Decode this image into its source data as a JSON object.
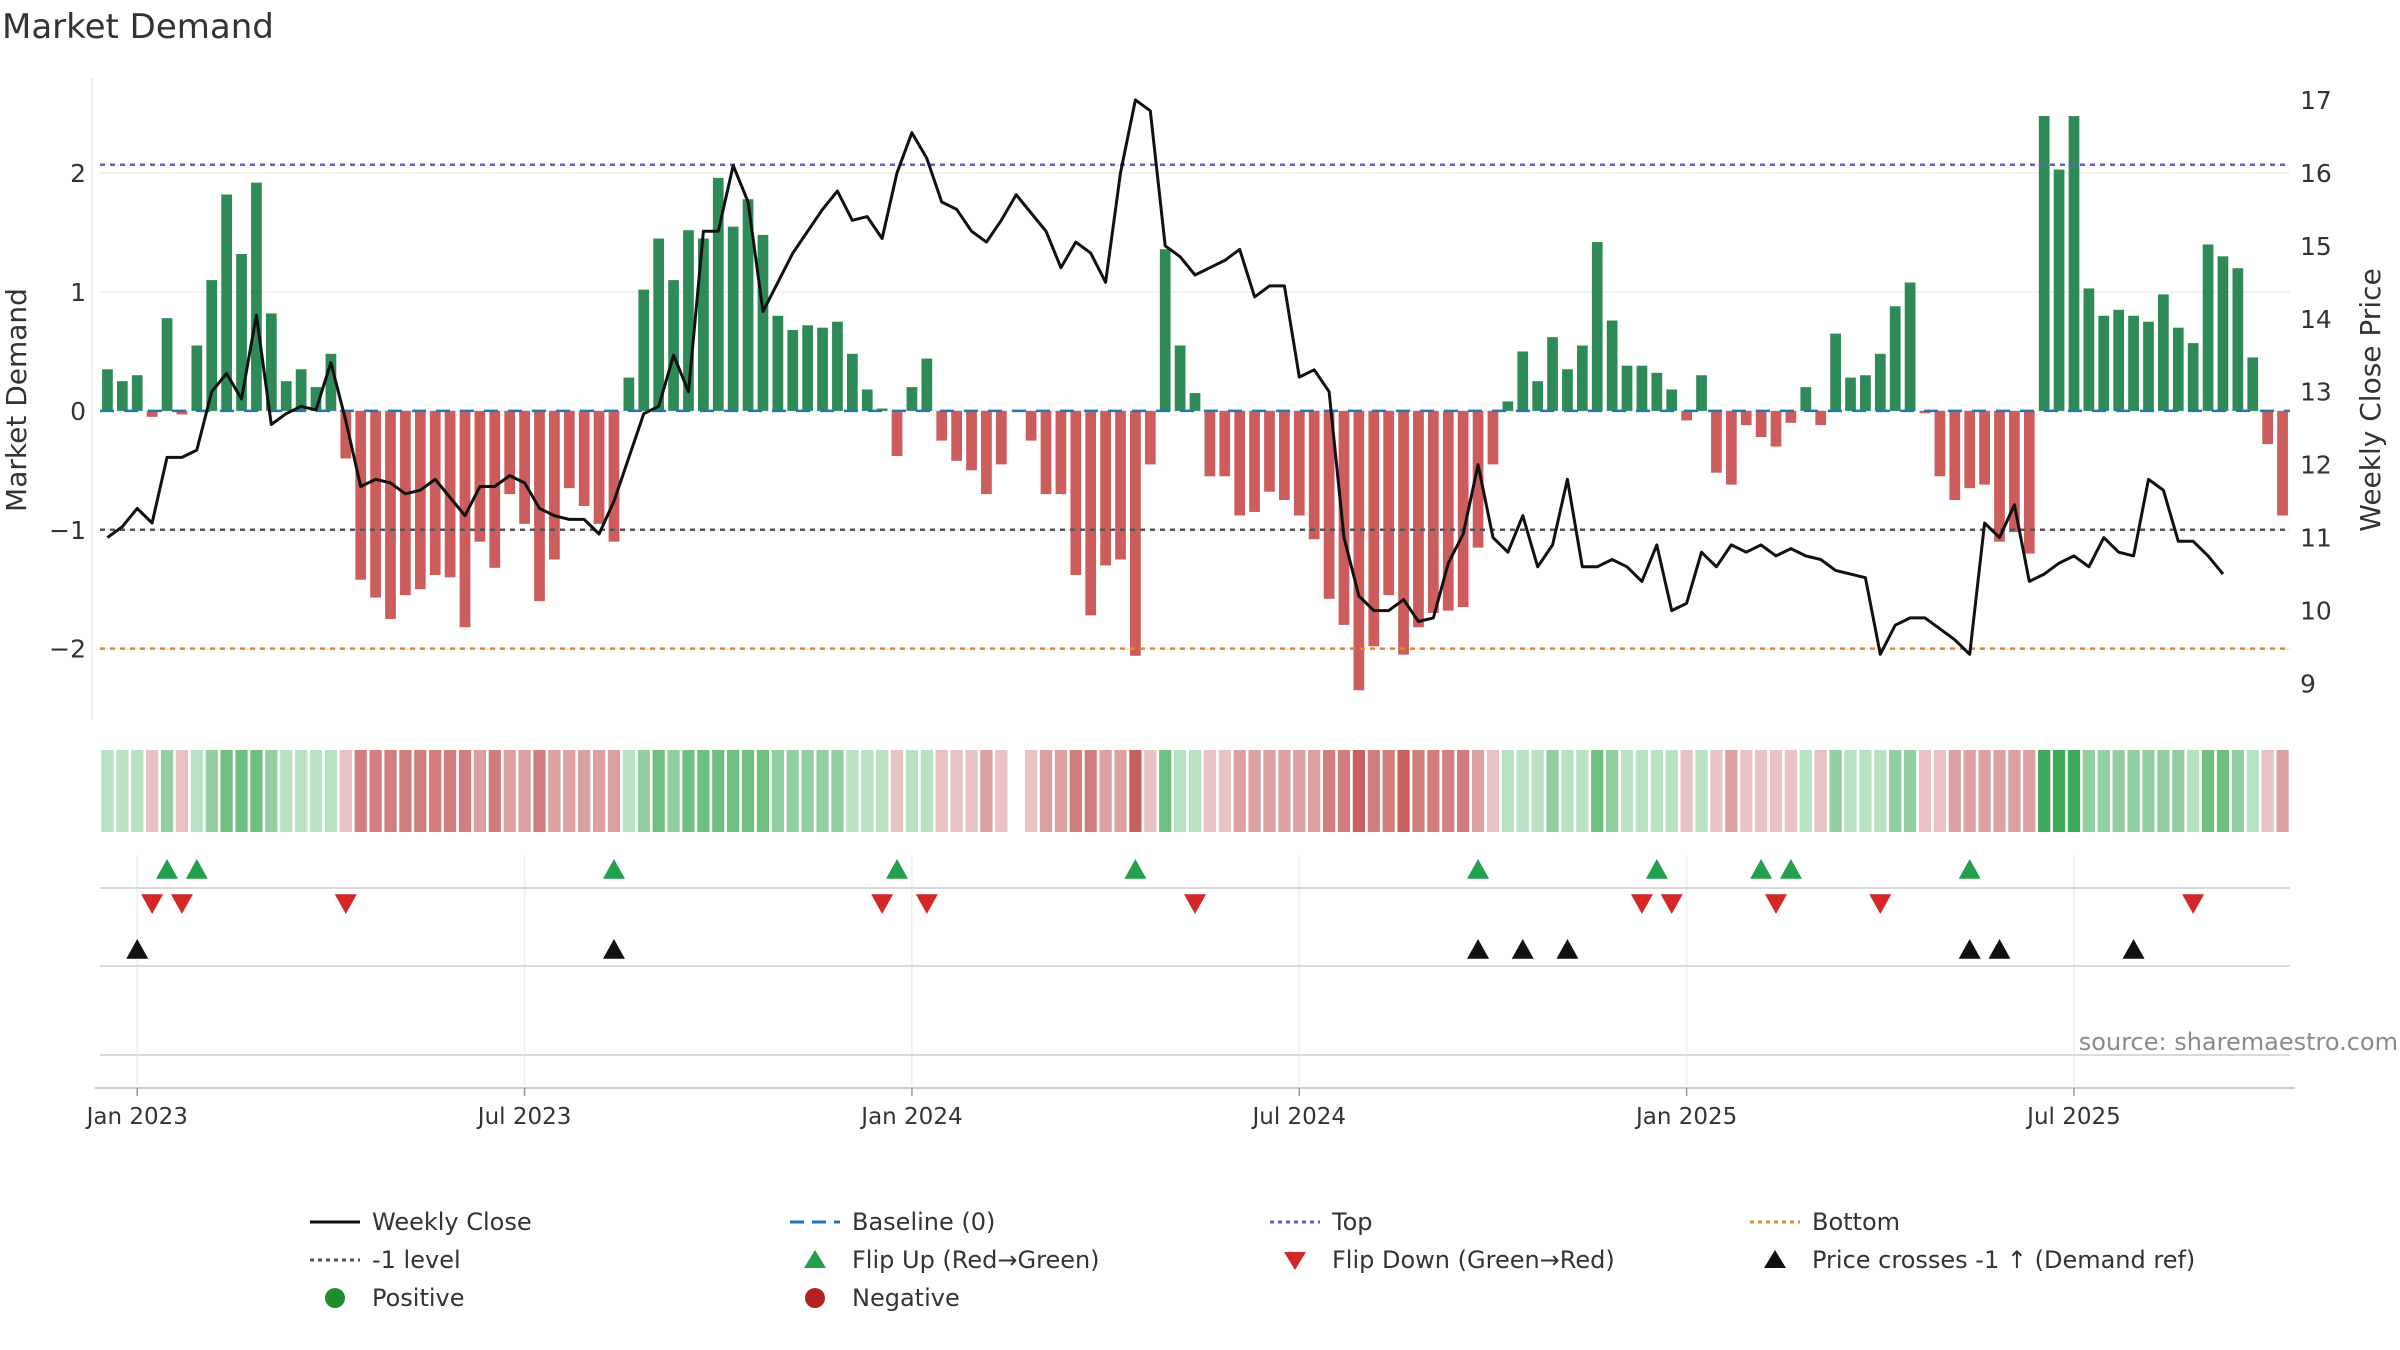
{
  "chart_data": {
    "type": "bar",
    "title": "Market Demand",
    "ylabel_left": "Market Demand",
    "ylabel_right": "Weekly Close Price",
    "source": "source: sharemaestro.com",
    "left_ylim": [
      -2.6,
      2.8
    ],
    "right_ylim": [
      8.5,
      17.3
    ],
    "left_ticks": [
      2,
      1,
      0,
      -1,
      -2
    ],
    "left_tick_labels": [
      "2",
      "1",
      "0",
      "−1",
      "−2"
    ],
    "right_ticks": [
      17,
      16,
      15,
      14,
      13,
      12,
      11,
      10,
      9
    ],
    "right_tick_labels": [
      "17",
      "16",
      "15",
      "14",
      "13",
      "12",
      "11",
      "10",
      "9"
    ],
    "x_ticks": [
      {
        "week": 2,
        "label": "Jan 2023"
      },
      {
        "week": 28,
        "label": "Jul 2023"
      },
      {
        "week": 54,
        "label": "Jan 2024"
      },
      {
        "week": 80,
        "label": "Jul 2024"
      },
      {
        "week": 106,
        "label": "Jan 2025"
      },
      {
        "week": 132,
        "label": "Jul 2025"
      }
    ],
    "reference_lines": {
      "top": 2.07,
      "bottom": -2.0,
      "minus_one": -1.0,
      "baseline": 0
    },
    "demand": [
      0.35,
      0.25,
      0.3,
      -0.05,
      0.78,
      -0.03,
      0.55,
      1.1,
      1.82,
      1.32,
      1.92,
      0.82,
      0.25,
      0.35,
      0.2,
      0.48,
      -0.4,
      -1.42,
      -1.57,
      -1.75,
      -1.55,
      -1.5,
      -1.38,
      -1.4,
      -1.82,
      -1.1,
      -1.32,
      -0.7,
      -0.95,
      -1.6,
      -1.25,
      -0.65,
      -0.8,
      -0.95,
      -1.1,
      0.28,
      1.02,
      1.45,
      1.1,
      1.52,
      1.45,
      1.96,
      1.55,
      1.78,
      1.48,
      0.8,
      0.68,
      0.72,
      0.7,
      0.75,
      0.48,
      0.18,
      0.02,
      -0.38,
      0.2,
      0.44,
      -0.25,
      -0.42,
      -0.5,
      -0.7,
      -0.45,
      null,
      -0.25,
      -0.7,
      -0.7,
      -1.38,
      -1.72,
      -1.3,
      -1.25,
      -2.06,
      -0.45,
      1.36,
      0.55,
      0.15,
      -0.55,
      -0.55,
      -0.88,
      -0.85,
      -0.68,
      -0.75,
      -0.88,
      -1.08,
      -1.58,
      -1.8,
      -2.35,
      -1.98,
      -1.55,
      -2.05,
      -1.82,
      -1.7,
      -1.68,
      -1.65,
      -1.15,
      -0.45,
      0.08,
      0.5,
      0.25,
      0.62,
      0.35,
      0.55,
      1.42,
      0.76,
      0.38,
      0.38,
      0.32,
      0.18,
      -0.08,
      0.3,
      -0.52,
      -0.62,
      -0.12,
      -0.22,
      -0.3,
      -0.1,
      0.2,
      -0.12,
      0.65,
      0.28,
      0.3,
      0.48,
      0.88,
      1.08,
      -0.02,
      -0.55,
      -0.75,
      -0.65,
      -0.62,
      -1.1,
      -1.02,
      -1.2,
      2.48,
      2.03,
      2.48,
      1.03,
      0.8,
      0.85,
      0.8,
      0.75,
      0.98,
      0.7,
      0.57,
      1.4,
      1.3,
      1.2,
      0.45,
      -0.28,
      -0.88
    ],
    "flip_up_weeks": [
      4,
      6,
      34,
      53,
      69,
      92,
      104,
      111,
      113,
      125
    ],
    "flip_down_weeks": [
      3,
      5,
      16,
      52,
      55,
      73,
      103,
      105,
      112,
      119,
      140
    ],
    "price_cross_weeks": [
      2,
      34,
      92,
      95,
      98,
      125,
      127,
      136
    ],
    "close": [
      11.0,
      11.15,
      11.4,
      11.2,
      12.1,
      12.1,
      12.2,
      13.0,
      13.25,
      12.9,
      14.05,
      12.55,
      12.7,
      12.8,
      12.75,
      13.4,
      12.6,
      11.7,
      11.8,
      11.75,
      11.6,
      11.65,
      11.8,
      11.55,
      11.3,
      11.7,
      11.7,
      11.85,
      11.75,
      11.4,
      11.3,
      11.25,
      11.25,
      11.05,
      11.5,
      12.1,
      12.7,
      12.8,
      13.5,
      13.0,
      15.2,
      15.2,
      16.1,
      15.6,
      14.1,
      14.5,
      14.9,
      15.2,
      15.5,
      15.75,
      15.35,
      15.4,
      15.1,
      16.0,
      16.55,
      16.2,
      15.6,
      15.5,
      15.2,
      15.05,
      15.35,
      15.7,
      15.45,
      15.2,
      14.7,
      15.05,
      14.9,
      14.5,
      16.0,
      17.0,
      16.85,
      15.0,
      14.85,
      14.6,
      14.7,
      14.8,
      14.95,
      14.3,
      14.45,
      14.45,
      13.2,
      13.3,
      13.0,
      11.0,
      10.2,
      10.0,
      10.0,
      10.15,
      9.85,
      9.9,
      10.65,
      11.05,
      12.0,
      11.0,
      10.8,
      11.3,
      10.6,
      10.9,
      11.8,
      10.6,
      10.6,
      10.7,
      10.6,
      10.4,
      10.9,
      10.0,
      10.1,
      10.8,
      10.6,
      10.9,
      10.8,
      10.9,
      10.75,
      10.85,
      10.75,
      10.7,
      10.55,
      10.5,
      10.45,
      9.4,
      9.8,
      9.9,
      9.9,
      9.75,
      9.6,
      9.4,
      11.2,
      11.0,
      11.45,
      10.4,
      10.5,
      10.65,
      10.75,
      10.6,
      11.0,
      10.8,
      10.75,
      11.8,
      11.65,
      10.95,
      10.95,
      10.75,
      10.5
    ],
    "strip_notes": "Intensity strip under main panel mirrors demand sign/magnitude for each week"
  },
  "legend": {
    "weekly_close": "Weekly Close",
    "baseline": "Baseline (0)",
    "top": "Top",
    "bottom": "Bottom",
    "minus_one": "-1 level",
    "flip_up": "Flip Up (Red→Green)",
    "flip_down": "Flip Down (Green→Red)",
    "price_cross": "Price crosses -1 ↑ (Demand ref)",
    "positive": "Positive",
    "negative": "Negative"
  },
  "colors": {
    "positive": "#2e8b57",
    "negative": "#cd5c5c",
    "close": "#111111",
    "top": "#6a5acd",
    "bottom": "#e08a2a",
    "minus_one": "#555555",
    "baseline": "#1f77b4",
    "flip_up": "#22a04b",
    "flip_down": "#d62728",
    "price_cross": "#111111",
    "legend_positive": "#1e8f2e",
    "legend_negative": "#b22222"
  }
}
